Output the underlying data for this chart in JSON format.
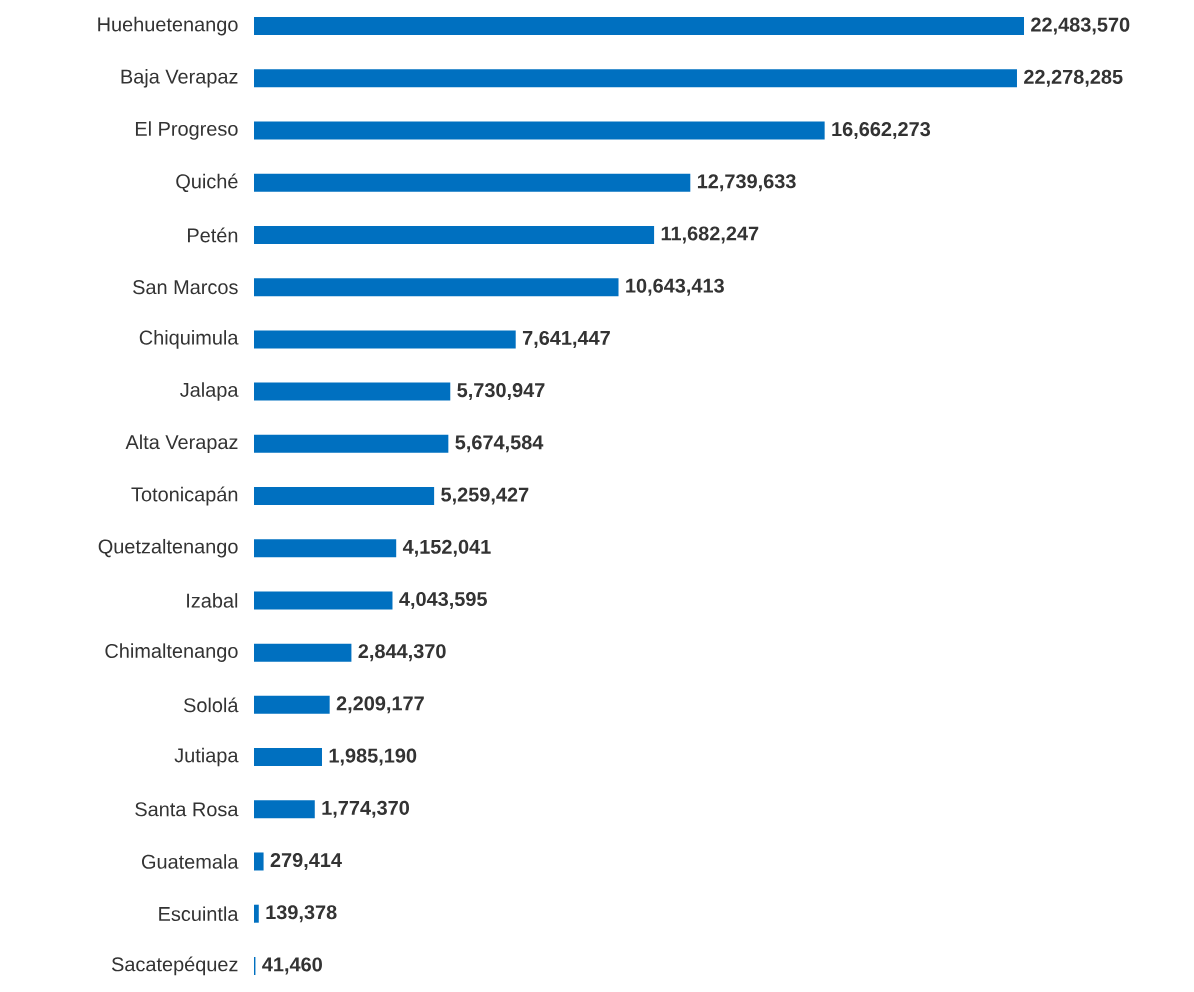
{
  "chart_data": {
    "type": "bar",
    "orientation": "horizontal",
    "categories": [
      "Huehuetenango",
      "Baja Verapaz",
      "El Progreso",
      "Quiché",
      "Petén",
      "San Marcos",
      "Chiquimula",
      "Jalapa",
      "Alta Verapaz",
      "Totonicapán",
      "Quetzaltenango",
      "Izabal",
      "Chimaltenango",
      "Sololá",
      "Jutiapa",
      "Santa Rosa",
      "Guatemala",
      "Escuintla",
      "Sacatepéquez"
    ],
    "values": [
      22483570,
      22278285,
      16662273,
      12739633,
      11682247,
      10643413,
      7641447,
      5730947,
      5674584,
      5259427,
      4152041,
      4043595,
      2844370,
      2209177,
      1985190,
      1774370,
      279414,
      139378,
      41460
    ],
    "value_labels": [
      "22,483,570",
      "22,278,285",
      "16,662,273",
      "12,739,633",
      "11,682,247",
      "10,643,413",
      "7,641,447",
      "5,730,947",
      "5,674,584",
      "5,259,427",
      "4,152,041",
      "4,043,595",
      "2,844,370",
      "2,209,177",
      "1,985,190",
      "1,774,370",
      "279,414",
      "139,378",
      "41,460"
    ],
    "color": "#0070c0"
  }
}
